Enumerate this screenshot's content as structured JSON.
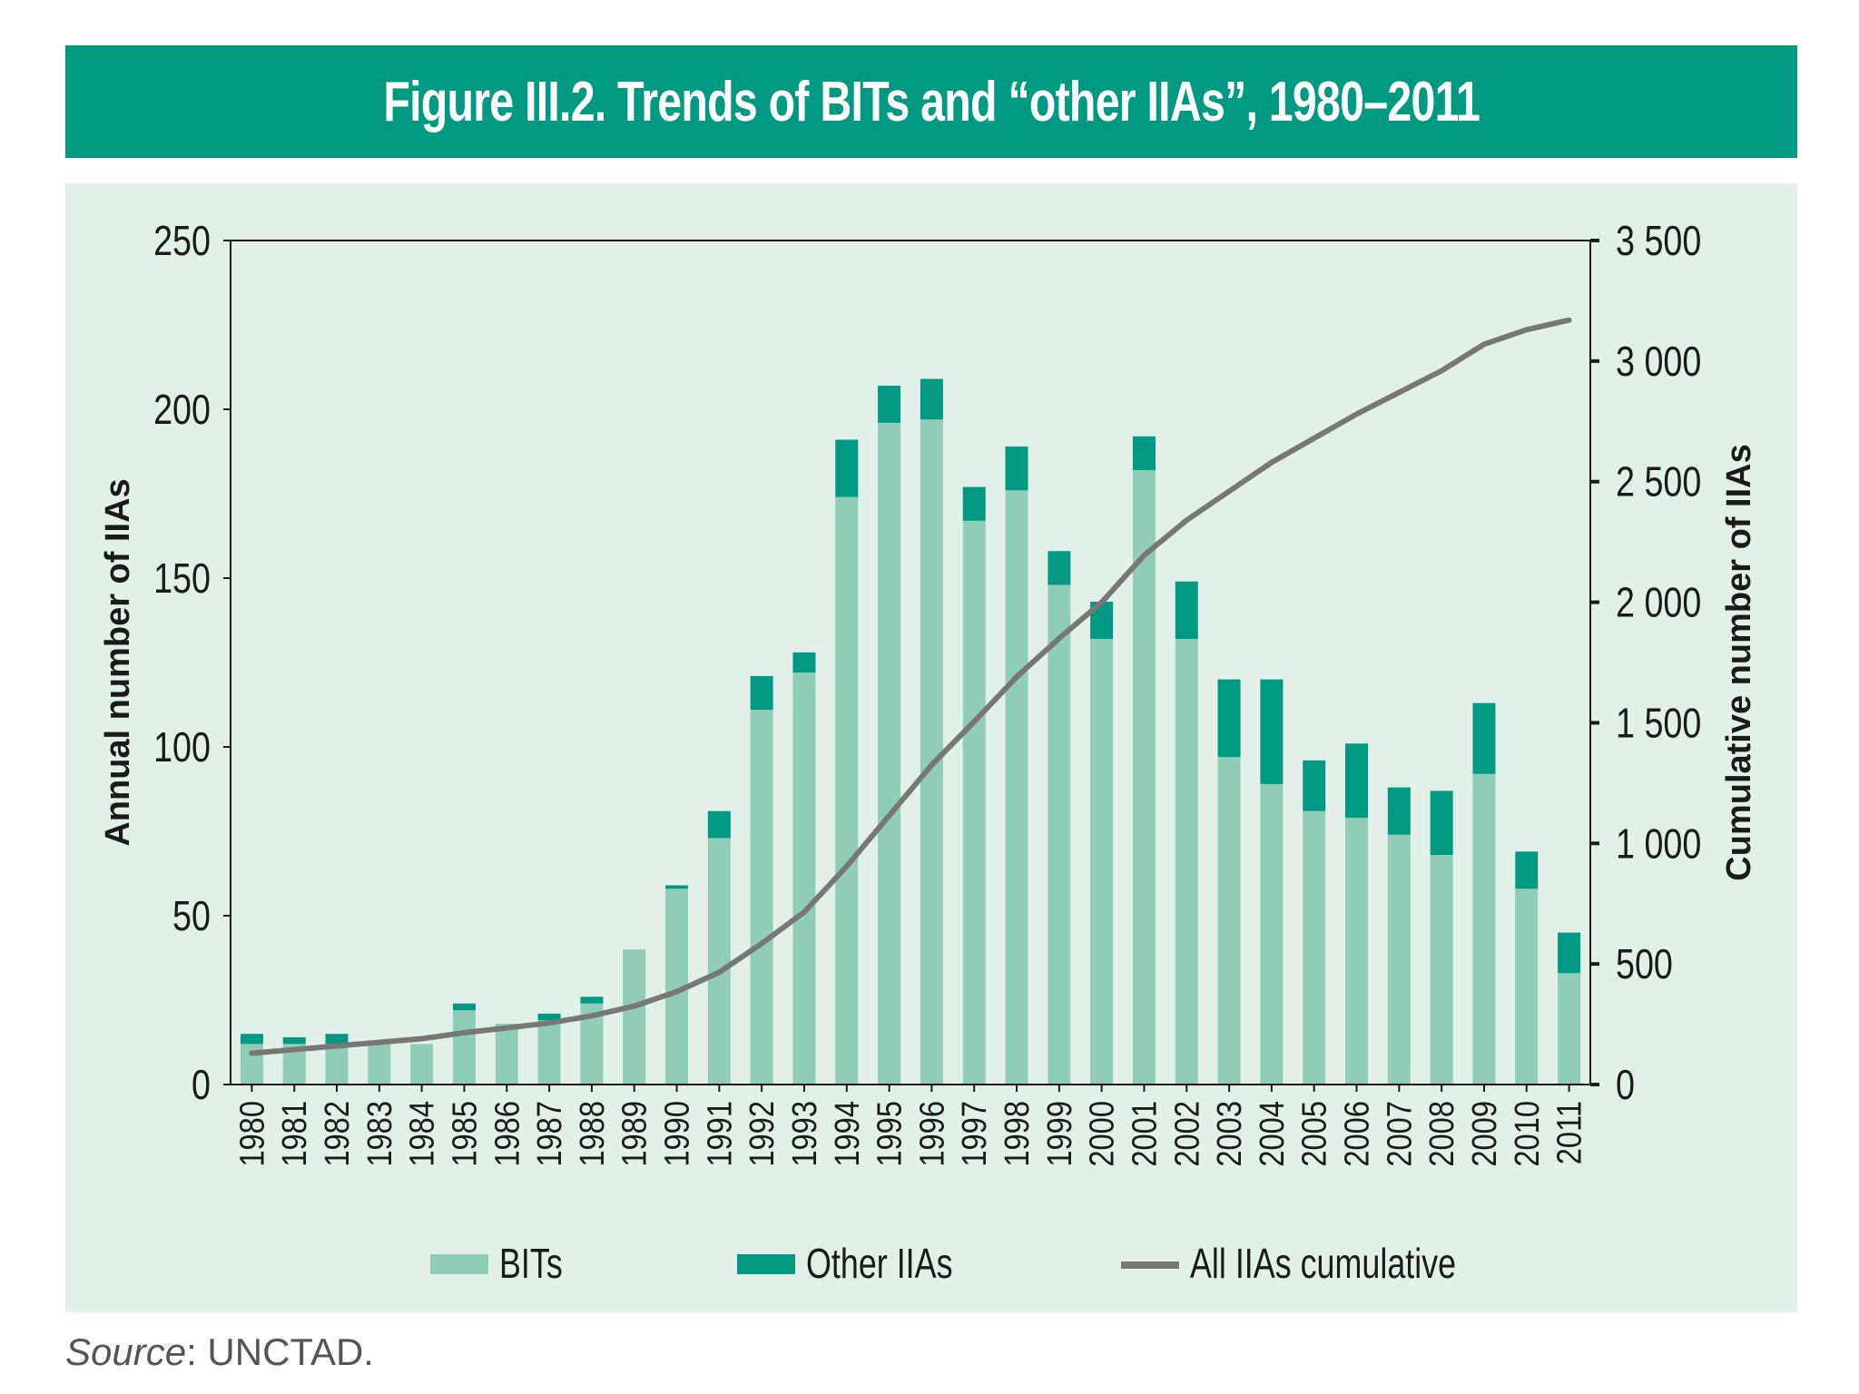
{
  "chart_data": {
    "type": "bar",
    "title": "Figure III.2. Trends of BITs and “other IIAs”, 1980–2011",
    "categories": [
      "1980",
      "1981",
      "1982",
      "1983",
      "1984",
      "1985",
      "1986",
      "1987",
      "1988",
      "1989",
      "1990",
      "1991",
      "1992",
      "1993",
      "1994",
      "1995",
      "1996",
      "1997",
      "1998",
      "1999",
      "2000",
      "2001",
      "2002",
      "2003",
      "2004",
      "2005",
      "2006",
      "2007",
      "2008",
      "2009",
      "2010",
      "2011"
    ],
    "series": [
      {
        "name": "BITs",
        "type": "bar",
        "axis": "left",
        "stack": "annual",
        "color": "#8fcdb8",
        "values": [
          12,
          12,
          12,
          12,
          12,
          22,
          18,
          19,
          24,
          40,
          58,
          73,
          111,
          122,
          174,
          196,
          197,
          167,
          176,
          148,
          132,
          182,
          132,
          97,
          89,
          81,
          79,
          74,
          68,
          92,
          58,
          33
        ]
      },
      {
        "name": "Other IIAs",
        "type": "bar",
        "axis": "left",
        "stack": "annual",
        "color": "#009a82",
        "values": [
          3,
          2,
          3,
          0,
          0,
          2,
          0,
          2,
          2,
          0,
          1,
          8,
          10,
          6,
          17,
          11,
          12,
          10,
          13,
          10,
          11,
          10,
          17,
          23,
          31,
          15,
          22,
          14,
          19,
          21,
          11,
          12
        ]
      },
      {
        "name": "All IIAs cumulative",
        "type": "line",
        "axis": "right",
        "color": "#777777",
        "values": [
          130,
          145,
          160,
          175,
          190,
          215,
          235,
          255,
          285,
          325,
          385,
          465,
          585,
          715,
          905,
          1115,
          1325,
          1505,
          1690,
          1850,
          2000,
          2195,
          2340,
          2460,
          2580,
          2680,
          2780,
          2870,
          2960,
          3070,
          3130,
          3170
        ]
      }
    ],
    "y_left": {
      "label": "Annual number of IIAs",
      "range": [
        0,
        250
      ],
      "ticks": [
        0,
        50,
        100,
        150,
        200,
        250
      ],
      "tick_labels": [
        "0",
        "50",
        "100",
        "150",
        "200",
        "250"
      ]
    },
    "y_right": {
      "label": "Cumulative number of IIAs",
      "range": [
        0,
        3500
      ],
      "ticks": [
        0,
        500,
        1000,
        1500,
        2000,
        2500,
        3000,
        3500
      ],
      "tick_labels": [
        "0",
        "500",
        "1 000",
        "1 500",
        "2 000",
        "2 500",
        "3 000",
        "3 500"
      ]
    },
    "legend": {
      "position": "bottom",
      "items": [
        "BITs",
        "Other IIAs",
        "All IIAs cumulative"
      ]
    },
    "grid": false,
    "source_label": "Source",
    "source_text": ": UNCTAD."
  }
}
